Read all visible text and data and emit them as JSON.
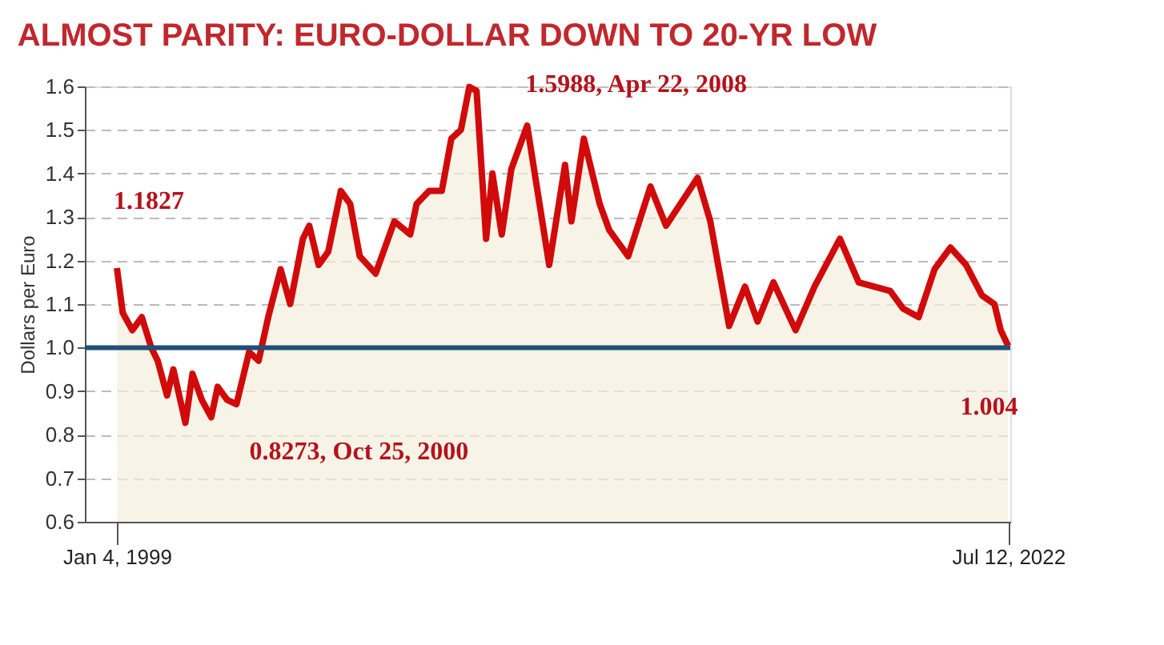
{
  "chart_data": {
    "type": "area",
    "title": "ALMOST PARITY: EURO-DOLLAR DOWN TO 20-YR LOW",
    "ylabel": "Dollars per Euro",
    "x": [
      "1999-01-04",
      "1999-03",
      "1999-06",
      "1999-09",
      "1999-12",
      "2000-02",
      "2000-05",
      "2000-07",
      "2000-10-25",
      "2001-01",
      "2001-04",
      "2001-07",
      "2001-09",
      "2001-12",
      "2002-03",
      "2002-07",
      "2002-10",
      "2003-01",
      "2003-05",
      "2003-08",
      "2003-12",
      "2004-02",
      "2004-05",
      "2004-08",
      "2004-12",
      "2005-03",
      "2005-06",
      "2005-11",
      "2006-05",
      "2006-10",
      "2006-12",
      "2007-04",
      "2007-08",
      "2007-11",
      "2008-02",
      "2008-04-22",
      "2008-07",
      "2008-10",
      "2008-12",
      "2009-03",
      "2009-06",
      "2009-11",
      "2010-06",
      "2010-11",
      "2011-01",
      "2011-05",
      "2011-10",
      "2012-01",
      "2012-07",
      "2013-02",
      "2013-07",
      "2014-05",
      "2014-09",
      "2015-03",
      "2015-08",
      "2015-12",
      "2016-05",
      "2016-12",
      "2017-06",
      "2018-02",
      "2018-08",
      "2019-06",
      "2019-10",
      "2020-03",
      "2020-08",
      "2021-01",
      "2021-06",
      "2021-11",
      "2022-03",
      "2022-05",
      "2022-07-12"
    ],
    "series": [
      {
        "color": "#d10a0a",
        "values": [
          1.1827,
          1.08,
          1.04,
          1.07,
          1.0,
          0.97,
          0.89,
          0.95,
          0.8273,
          0.94,
          0.88,
          0.84,
          0.91,
          0.88,
          0.87,
          0.99,
          0.97,
          1.07,
          1.18,
          1.1,
          1.25,
          1.28,
          1.19,
          1.22,
          1.36,
          1.33,
          1.21,
          1.17,
          1.29,
          1.26,
          1.33,
          1.36,
          1.36,
          1.48,
          1.5,
          1.5988,
          1.59,
          1.25,
          1.4,
          1.26,
          1.41,
          1.51,
          1.19,
          1.42,
          1.29,
          1.48,
          1.33,
          1.27,
          1.21,
          1.37,
          1.28,
          1.39,
          1.29,
          1.05,
          1.14,
          1.06,
          1.15,
          1.04,
          1.14,
          1.25,
          1.15,
          1.13,
          1.09,
          1.07,
          1.18,
          1.23,
          1.19,
          1.12,
          1.1,
          1.04,
          1.004
        ]
      }
    ],
    "xlim": [
      "1998-03-01",
      "2022-08-01"
    ],
    "xticks": [
      {
        "value": "1999-01-04",
        "label": "Jan 4, 1999"
      },
      {
        "value": "2022-07-12",
        "label": "Jul 12, 2022"
      }
    ],
    "ylim": [
      0.6,
      1.6
    ],
    "yticks": [
      0.6,
      0.7,
      0.8,
      0.9,
      {
        "value": 1,
        "label": "1.0"
      },
      1.1,
      1.2,
      1.3,
      1.4,
      1.5,
      1.6
    ],
    "ref_lines": [
      {
        "axis": "y",
        "value": 1.0,
        "color": "#1f4e79"
      }
    ],
    "annotations": [
      {
        "text": "1.1827",
        "x": "1999-01-04",
        "y": 1.1827
      },
      {
        "text": "0.8273, Oct 25, 2000",
        "x": "2000-10-25",
        "y": 0.8273
      },
      {
        "text": "1.5988, Apr 22, 2008",
        "x": "2008-04-22",
        "y": 1.5988
      },
      {
        "text": "1.004",
        "x": "2022-07-12",
        "y": 1.004
      }
    ],
    "grid": "y"
  }
}
